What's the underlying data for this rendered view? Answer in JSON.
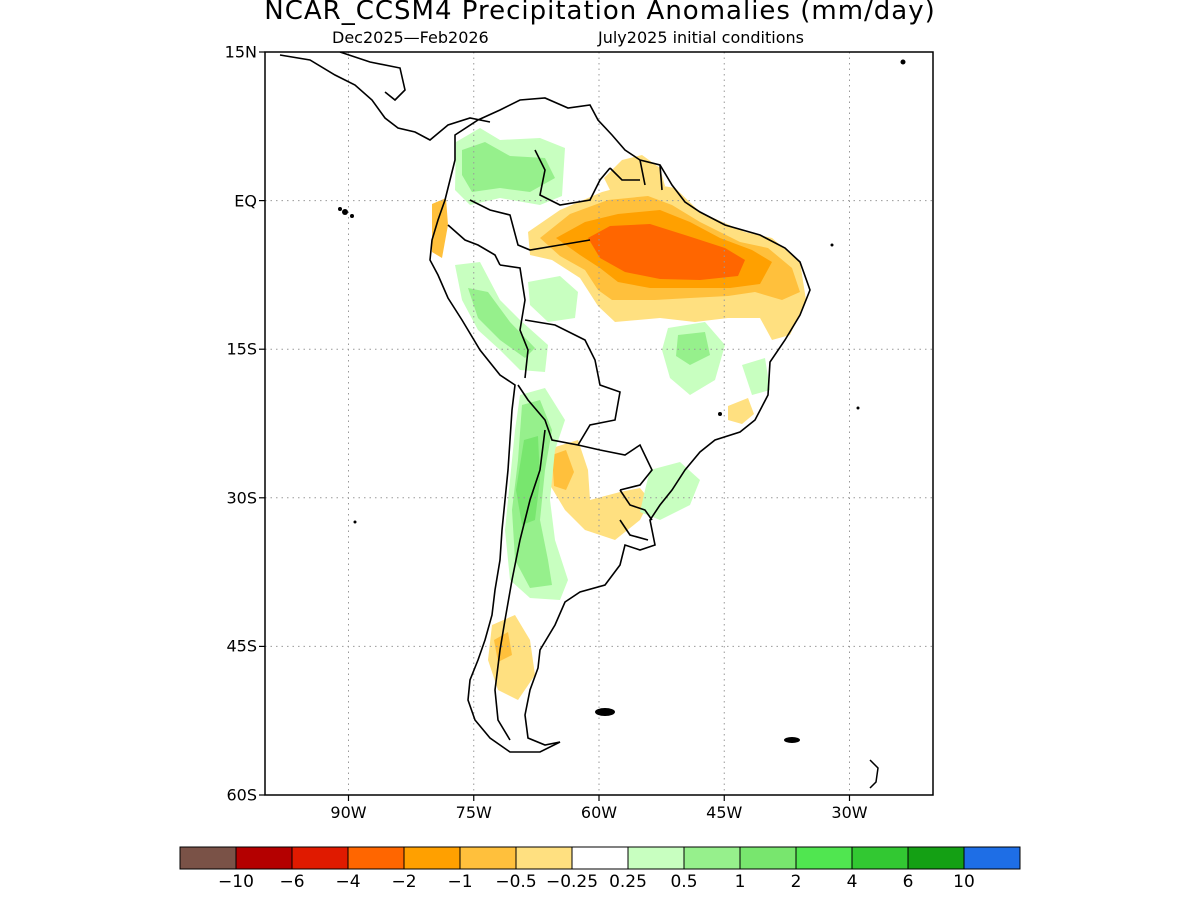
{
  "title": "NCAR_CCSM4 Precipitation Anomalies (mm/day)",
  "subtitle_left": "Dec2025—Feb2026",
  "subtitle_right": "July2025 initial conditions",
  "map": {
    "lon_range": [
      -100,
      -20
    ],
    "lat_range": [
      -60,
      15
    ],
    "lat_labels": [
      {
        "text": "15N",
        "lat": 15
      },
      {
        "text": "EQ",
        "lat": 0
      },
      {
        "text": "15S",
        "lat": -15
      },
      {
        "text": "30S",
        "lat": -30
      },
      {
        "text": "45S",
        "lat": -45
      },
      {
        "text": "60S",
        "lat": -60
      }
    ],
    "lon_labels": [
      {
        "text": "90W",
        "lon": -90
      },
      {
        "text": "75W",
        "lon": -75
      },
      {
        "text": "60W",
        "lon": -60
      },
      {
        "text": "45W",
        "lon": -45
      },
      {
        "text": "30W",
        "lon": -30
      }
    ],
    "grid": "dotted"
  },
  "colorbar": {
    "colors": [
      "#7a5247",
      "#b40000",
      "#e01a00",
      "#ff6600",
      "#ffa000",
      "#ffc03c",
      "#ffe080",
      "#ffffff",
      "#c8ffc0",
      "#96f08c",
      "#78e66e",
      "#50e650",
      "#32c832",
      "#14a014",
      "#1e6ee6"
    ],
    "labels": [
      "−10",
      "−6",
      "−4",
      "−2",
      "−1",
      "−0.5",
      "−0.25",
      "0.25",
      "0.5",
      "1",
      "2",
      "4",
      "6",
      "10"
    ]
  }
}
